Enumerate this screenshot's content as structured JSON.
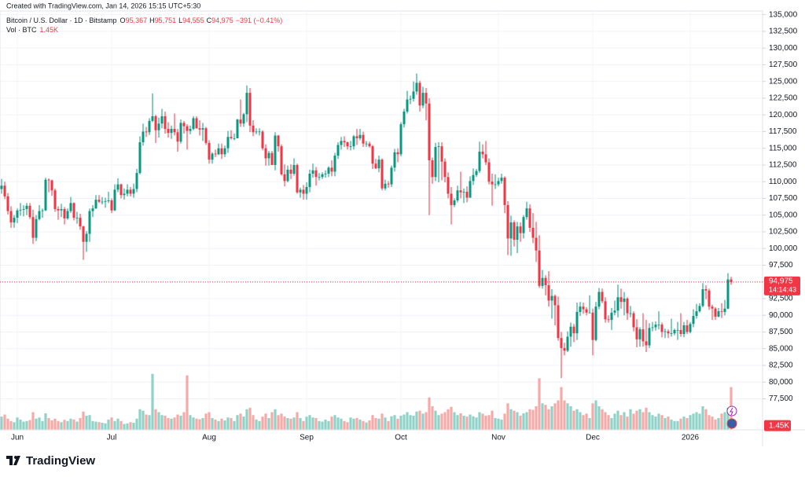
{
  "header": {
    "created": "Created with TradingView.com, Jan 14, 2026 15:15 UTC+5:30"
  },
  "legend": {
    "symbol": "Bitcoin / U.S. Dollar · 1D · Bitstamp",
    "open_label": "O",
    "open": "95,367",
    "high_label": "H",
    "high": "95,751",
    "low_label": "L",
    "low": "94,555",
    "close_label": "C",
    "close": "94,975",
    "change": "−391 (−0.41%)",
    "volume_title": "Vol · BTC"
  },
  "chart_data": {
    "type": "candlestick",
    "open": [
      108900,
      109400,
      107800,
      105600,
      103900,
      104600,
      105700,
      105800,
      105900,
      106400,
      104700,
      101600,
      104400,
      105600,
      105700,
      110300,
      110200,
      108700,
      105900,
      105700,
      105900,
      104500,
      105600,
      106800,
      104600,
      104600,
      103300,
      101000,
      102200,
      105600,
      106000,
      107300,
      107000,
      107000,
      107100,
      107200,
      105700,
      108800,
      109600,
      108000,
      108200,
      108800,
      108200,
      108900,
      111300,
      115900,
      117500,
      117400,
      119100,
      119800,
      117700,
      118700,
      119800,
      117900,
      117300,
      117900,
      117400,
      116000,
      118800,
      118300,
      117600,
      117900,
      119500,
      118000,
      117800,
      118000,
      115800,
      113300,
      114200,
      114100,
      115000,
      114100,
      115000,
      116700,
      116500,
      116500,
      119300,
      118700,
      120100,
      123300,
      118400,
      117400,
      117500,
      117500,
      115000,
      113500,
      114300,
      112500,
      116900,
      115300,
      111100,
      110100,
      111800,
      111200,
      112500,
      108400,
      108800,
      108200,
      109200,
      111200,
      111700,
      110700,
      110700,
      111100,
      111200,
      112100,
      111500,
      113900,
      115500,
      116100,
      115900,
      115300,
      115300,
      116800,
      116500,
      117000,
      115700,
      115700,
      115300,
      112700,
      112000,
      113300,
      109000,
      109700,
      109600,
      112100,
      114400,
      114100,
      118600,
      120500,
      122300,
      122400,
      123500,
      124800,
      121400,
      123300,
      121700,
      113200,
      110700,
      115200,
      115300,
      113000,
      110700,
      108200,
      106500,
      107200,
      108700,
      108400,
      108500,
      107600,
      110100,
      111000,
      111600,
      114500,
      114100,
      112900,
      110000,
      109600,
      109600,
      110100,
      110600,
      106500,
      101500,
      103900,
      101300,
      103300,
      102300,
      104700,
      106000,
      103100,
      101600,
      99700,
      94400,
      95600,
      94500,
      92200,
      92900,
      91500,
      86600,
      85100,
      84700,
      86800,
      88300,
      87300,
      90500,
      91300,
      90900,
      90400,
      90400,
      86300,
      91300,
      93500,
      92100,
      89400,
      89300,
      90400,
      90700,
      92700,
      92000,
      92500,
      90300,
      90300,
      88200,
      86400,
      87900,
      86100,
      85500,
      88100,
      88200,
      88600,
      88600,
      87500,
      87600,
      87300,
      87300,
      87800,
      87800,
      87200,
      88500,
      87500,
      88700,
      89900,
      90600,
      91400,
      93900,
      93700,
      91300,
      91000,
      89800,
      90600,
      90500,
      91000,
      95367
    ],
    "high": [
      110400,
      110000,
      108300,
      106300,
      105000,
      106000,
      106800,
      106500,
      106800,
      106800,
      105800,
      105000,
      106500,
      106000,
      110600,
      110500,
      110300,
      109000,
      106300,
      106700,
      106200,
      106000,
      107700,
      106900,
      105500,
      105200,
      103400,
      102600,
      106000,
      106500,
      108000,
      108000,
      107700,
      107600,
      108500,
      107500,
      109600,
      110500,
      109700,
      109000,
      109600,
      109200,
      109700,
      111900,
      116800,
      118700,
      118200,
      119500,
      123200,
      120000,
      119600,
      120900,
      120500,
      118900,
      118400,
      120200,
      117900,
      119300,
      119100,
      118600,
      118400,
      119800,
      119800,
      119200,
      118800,
      118200,
      116200,
      114400,
      114800,
      115700,
      115700,
      115400,
      117600,
      117700,
      117200,
      119400,
      122300,
      120300,
      124400,
      124000,
      119200,
      118000,
      118000,
      117700,
      115600,
      114600,
      114600,
      117400,
      117000,
      115600,
      112600,
      112400,
      112600,
      113500,
      112700,
      109100,
      109500,
      109900,
      111800,
      112700,
      112200,
      111300,
      111400,
      111700,
      112300,
      113200,
      114300,
      115900,
      116700,
      116800,
      116000,
      116100,
      117000,
      117900,
      117900,
      117500,
      116100,
      116000,
      115500,
      113400,
      113900,
      113500,
      110300,
      110100,
      112400,
      114900,
      115000,
      118900,
      120900,
      123600,
      122900,
      125000,
      126200,
      125100,
      124200,
      124000,
      122500,
      113600,
      115800,
      115900,
      115900,
      113500,
      111400,
      109200,
      107500,
      109400,
      111500,
      109000,
      109300,
      110800,
      112000,
      111900,
      116000,
      115600,
      116100,
      113500,
      111200,
      111100,
      110600,
      111200,
      110800,
      107100,
      104900,
      104200,
      104000,
      103900,
      105000,
      107000,
      106600,
      105300,
      104000,
      102000,
      96800,
      96000,
      96600,
      93900,
      93100,
      92800,
      87500,
      85900,
      87600,
      88900,
      88700,
      91900,
      92000,
      91900,
      91200,
      93000,
      91000,
      92000,
      94100,
      94000,
      92700,
      90000,
      91100,
      92200,
      94600,
      94000,
      93500,
      92700,
      91400,
      90600,
      89400,
      88200,
      90300,
      89300,
      88800,
      89000,
      89100,
      90600,
      88900,
      88000,
      87900,
      89500,
      88000,
      89000,
      90300,
      89000,
      89300,
      89000,
      90900,
      91700,
      91800,
      94800,
      94500,
      94000,
      91600,
      91200,
      91100,
      91800,
      92300,
      96300,
      95751
    ],
    "low": [
      108200,
      107400,
      105100,
      103100,
      103100,
      103800,
      104900,
      104800,
      105000,
      104400,
      100700,
      101100,
      104200,
      104600,
      105600,
      108400,
      107900,
      105500,
      104300,
      104700,
      103600,
      104300,
      105300,
      104200,
      103700,
      102800,
      98300,
      99500,
      101000,
      104700,
      105900,
      106800,
      106600,
      106100,
      106800,
      105300,
      105600,
      108400,
      107500,
      107300,
      107800,
      107800,
      107600,
      108400,
      111100,
      115400,
      116700,
      117000,
      118900,
      115800,
      116600,
      118000,
      117200,
      116600,
      116400,
      116900,
      114500,
      115700,
      117200,
      114800,
      117100,
      117700,
      117900,
      116900,
      116100,
      115500,
      112700,
      112700,
      113700,
      114000,
      113400,
      113700,
      114300,
      116300,
      116200,
      116500,
      118200,
      118200,
      118900,
      117400,
      116800,
      117100,
      116900,
      114700,
      112400,
      112400,
      112500,
      111700,
      114500,
      110900,
      109300,
      109900,
      110400,
      110900,
      108200,
      107600,
      107300,
      107300,
      108400,
      110600,
      109400,
      110200,
      110400,
      110600,
      110700,
      110800,
      110800,
      113400,
      114800,
      115200,
      114800,
      114700,
      114800,
      115500,
      116200,
      115200,
      115200,
      115100,
      111900,
      111900,
      111400,
      108700,
      108700,
      109100,
      109200,
      111500,
      112900,
      113800,
      118100,
      120200,
      121600,
      122000,
      123000,
      120500,
      121000,
      119200,
      105000,
      109700,
      110100,
      109900,
      110200,
      109900,
      107500,
      103600,
      106200,
      106900,
      107500,
      106800,
      106900,
      107600,
      109500,
      110700,
      111300,
      113500,
      112500,
      109600,
      106400,
      108900,
      109300,
      109700,
      105300,
      99000,
      98900,
      100300,
      99300,
      101000,
      101500,
      104300,
      102500,
      100800,
      98000,
      94100,
      94000,
      93000,
      91300,
      89500,
      88500,
      86200,
      80600,
      84000,
      84500,
      85300,
      86000,
      86300,
      89900,
      90200,
      90000,
      90300,
      84000,
      86100,
      90900,
      91800,
      88900,
      88900,
      87800,
      90000,
      89700,
      91000,
      90000,
      89300,
      89700,
      87600,
      85200,
      85300,
      85300,
      84500,
      85100,
      87600,
      87700,
      87900,
      86700,
      86600,
      86600,
      86800,
      87000,
      86300,
      86800,
      86700,
      87200,
      87300,
      88200,
      89500,
      90400,
      91200,
      92400,
      90800,
      89300,
      89300,
      89700,
      89600,
      90000,
      90900,
      94555
    ],
    "close": [
      109400,
      107800,
      105600,
      103900,
      104600,
      105700,
      105800,
      105900,
      106400,
      104700,
      101600,
      104400,
      105600,
      105700,
      110300,
      110200,
      108700,
      105900,
      105700,
      105900,
      104500,
      105600,
      106800,
      104600,
      104600,
      103300,
      101000,
      102200,
      105600,
      106000,
      107300,
      107000,
      107000,
      107100,
      107200,
      105700,
      108800,
      109600,
      108000,
      108200,
      108800,
      108200,
      108900,
      111300,
      115900,
      117500,
      117400,
      119100,
      119800,
      117700,
      118700,
      119800,
      117900,
      117300,
      117900,
      117400,
      116000,
      118800,
      118300,
      117600,
      117900,
      119500,
      118000,
      117800,
      118000,
      115800,
      113300,
      114200,
      114100,
      115000,
      114100,
      115000,
      116700,
      116500,
      116500,
      119300,
      118700,
      120100,
      123300,
      118400,
      117400,
      117500,
      117500,
      115000,
      113500,
      114300,
      112500,
      116900,
      115300,
      111100,
      110100,
      111800,
      111200,
      112500,
      108400,
      108800,
      108200,
      109200,
      111200,
      111700,
      110700,
      110700,
      111100,
      111200,
      112100,
      111500,
      113900,
      115500,
      116100,
      115900,
      115300,
      115300,
      116800,
      116500,
      117000,
      115700,
      115700,
      115300,
      112700,
      112000,
      113300,
      109000,
      109700,
      109600,
      112100,
      114400,
      114100,
      118600,
      120500,
      122300,
      122400,
      123500,
      124800,
      121400,
      123300,
      121700,
      113200,
      110700,
      115200,
      115300,
      113000,
      110700,
      108200,
      106500,
      107200,
      108700,
      108400,
      108500,
      107600,
      110100,
      111000,
      111600,
      114500,
      114100,
      112900,
      110000,
      109600,
      109600,
      110100,
      110600,
      106500,
      101500,
      103900,
      101300,
      103300,
      102300,
      104700,
      106000,
      103100,
      101600,
      99700,
      94400,
      95600,
      94500,
      92200,
      92900,
      91500,
      86600,
      85100,
      84700,
      86800,
      88300,
      87300,
      90500,
      91300,
      90900,
      90400,
      90400,
      86300,
      91300,
      93500,
      92100,
      89400,
      89300,
      90400,
      90700,
      92700,
      92000,
      92500,
      90300,
      90300,
      88200,
      86400,
      87900,
      86100,
      85500,
      88100,
      88200,
      88600,
      88600,
      87500,
      87600,
      87300,
      87300,
      87800,
      87800,
      87200,
      88500,
      87500,
      88700,
      89900,
      90600,
      91400,
      93900,
      93700,
      91300,
      91000,
      89800,
      90600,
      90500,
      91000,
      95366,
      94975
    ],
    "volume": [
      450,
      520,
      380,
      300,
      260,
      420,
      350,
      280,
      300,
      330,
      600,
      380,
      420,
      300,
      560,
      400,
      320,
      380,
      300,
      260,
      340,
      300,
      380,
      350,
      280,
      400,
      620,
      480,
      500,
      300,
      280,
      260,
      240,
      220,
      350,
      420,
      300,
      380,
      300,
      200,
      220,
      260,
      240,
      380,
      700,
      650,
      520,
      500,
      1900,
      700,
      600,
      500,
      480,
      400,
      380,
      420,
      520,
      480,
      600,
      1850,
      500,
      420,
      380,
      360,
      400,
      550,
      600,
      400,
      350,
      300,
      380,
      320,
      420,
      400,
      300,
      500,
      550,
      450,
      700,
      750,
      500,
      350,
      300,
      450,
      550,
      400,
      600,
      700,
      500,
      550,
      450,
      400,
      380,
      420,
      600,
      400,
      300,
      450,
      500,
      420,
      400,
      300,
      280,
      350,
      300,
      450,
      500,
      420,
      380,
      300,
      260,
      420,
      380,
      400,
      350,
      300,
      250,
      320,
      500,
      400,
      380,
      550,
      420,
      300,
      460,
      500,
      380,
      480,
      520,
      600,
      500,
      480,
      620,
      650,
      550,
      600,
      1100,
      800,
      650,
      500,
      550,
      600,
      700,
      780,
      600,
      500,
      560,
      480,
      450,
      520,
      460,
      420,
      600,
      550,
      480,
      500,
      650,
      400,
      380,
      350,
      550,
      900,
      700,
      650,
      600,
      480,
      560,
      600,
      700,
      680,
      800,
      1750,
      900,
      850,
      700,
      800,
      900,
      1000,
      1450,
      1000,
      900,
      800,
      650,
      700,
      600,
      500,
      550,
      400,
      900,
      1000,
      800,
      700,
      600,
      500,
      400,
      550,
      650,
      500,
      600,
      450,
      700,
      550,
      650,
      700,
      600,
      750,
      600,
      500,
      450,
      550,
      500,
      400,
      450,
      350,
      300,
      300,
      380,
      450,
      400,
      500,
      550,
      600,
      550,
      800,
      700,
      500,
      450,
      350,
      400,
      550,
      600,
      750,
      1450
    ],
    "xlim": [
      -0.5,
      242
    ],
    "xticks": [
      {
        "value": 5,
        "label": "Jun"
      },
      {
        "value": 35,
        "label": "Jul"
      },
      {
        "value": 66,
        "label": "Aug"
      },
      {
        "value": 97,
        "label": "Sep"
      },
      {
        "value": 127,
        "label": "Oct"
      },
      {
        "value": 158,
        "label": "Nov"
      },
      {
        "value": 188,
        "label": "Dec"
      },
      {
        "value": 219,
        "label": "2026"
      }
    ],
    "ylim": [
      72850,
      135550
    ],
    "yticks": [
      {
        "value": 77500,
        "label": "77,500"
      },
      {
        "value": 80000,
        "label": "80,000"
      },
      {
        "value": 82500,
        "label": "82,500"
      },
      {
        "value": 85000,
        "label": "85,000"
      },
      {
        "value": 87500,
        "label": "87,500"
      },
      {
        "value": 90000,
        "label": "90,000"
      },
      {
        "value": 92500,
        "label": "92,500"
      },
      {
        "value": 95000,
        "label": "95,000"
      },
      {
        "value": 97500,
        "label": "97,500"
      },
      {
        "value": 100000,
        "label": "100,000"
      },
      {
        "value": 102500,
        "label": "102,500"
      },
      {
        "value": 105000,
        "label": "105,000"
      },
      {
        "value": 107500,
        "label": "107,500"
      },
      {
        "value": 110000,
        "label": "110,000"
      },
      {
        "value": 112500,
        "label": "112,500"
      },
      {
        "value": 115000,
        "label": "115,000"
      },
      {
        "value": 117500,
        "label": "117,500"
      },
      {
        "value": 120000,
        "label": "120,000"
      },
      {
        "value": 122500,
        "label": "122,500"
      },
      {
        "value": 125000,
        "label": "125,000"
      },
      {
        "value": 127500,
        "label": "127,500"
      },
      {
        "value": 130000,
        "label": "130,000"
      },
      {
        "value": 132500,
        "label": "132,500"
      },
      {
        "value": 135000,
        "label": "135,000"
      }
    ],
    "volume_ylim": [
      0,
      2000
    ],
    "grid": true,
    "up_color": "#089981",
    "down_color": "#f23645",
    "up_volume_color": "#8fd3c8",
    "down_volume_color": "#f7a9a7",
    "last_price": {
      "value": 94975,
      "label": "94,975"
    },
    "countdown": "14:14:43",
    "last_volume": {
      "value": 1450,
      "label": "1.45K"
    }
  },
  "footer": {
    "logo": "TradingView"
  }
}
